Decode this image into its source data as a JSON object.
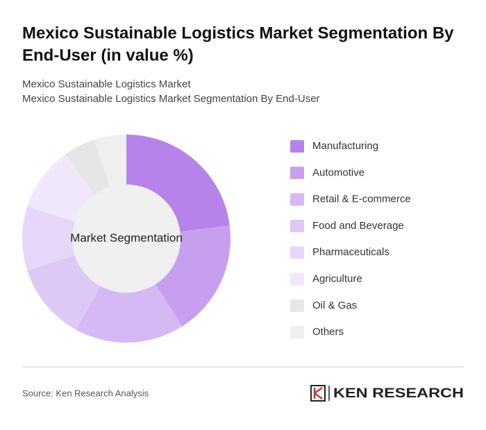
{
  "chart_data": {
    "type": "pie",
    "title": [
      "Mexico Sustainable Logistics Market Segmentation By",
      "End-User (in value %)"
    ],
    "subtitle": [
      "Mexico Sustainable Logistics Market",
      "Mexico Sustainable Logistics Market Segmentation By End-User"
    ],
    "center_label": "Market Segmentation",
    "categories": [
      "Manufacturing",
      "Automotive",
      "Retail & E-commerce",
      "Food and Beverage",
      "Pharmaceuticals",
      "Agriculture",
      "Oil & Gas",
      "Others"
    ],
    "values": [
      23,
      18,
      17,
      12,
      10,
      10,
      5,
      5
    ],
    "colors": [
      "#b683ea",
      "#c6a0ef",
      "#d4b9f4",
      "#ddc8f6",
      "#e6d6f9",
      "#f0e7fb",
      "#e6e6e6",
      "#efefef"
    ],
    "source": "Source: Ken Research Analysis",
    "brand": "KEN RESEARCH"
  }
}
